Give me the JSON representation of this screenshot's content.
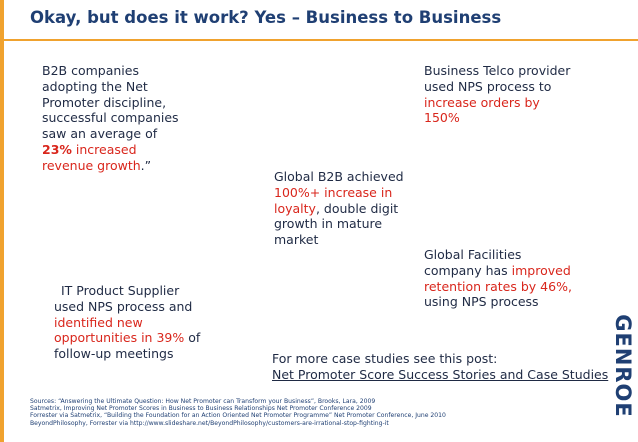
{
  "slide": {
    "title": "Okay, but does it work? Yes – Business to Business",
    "b2b": {
      "line1": "B2B companies",
      "line2": "adopting the Net",
      "line3": "Promoter discipline,",
      "line4": "successful companies",
      "line5": "saw an average of",
      "highlight_pct": "23%",
      "highlight_rest": " increased",
      "highlight_line2": "revenue growth",
      "end": ".”"
    },
    "telco": {
      "line1": "Business Telco provider",
      "line2": "used NPS process to",
      "line3": "increase orders by",
      "line4": "150%"
    },
    "global_b2b": {
      "line1": "Global B2B  achieved",
      "line2": "100%+ increase in",
      "line3_red": "loyalty",
      "line3_rest": ", double digit",
      "line4": "growth in mature",
      "line5": "market"
    },
    "facilities": {
      "line1": "Global Facilities",
      "line2_pre": "company has ",
      "line2_red": "improved",
      "line3": "retention rates by 46%,",
      "line4": "using NPS process"
    },
    "itps": {
      "line1": "IT Product Supplier",
      "line2": "used NPS process and",
      "line3": "identified new",
      "line4_red": "opportunities in 39%",
      "line4_rest": " of",
      "line5": "follow-up meetings"
    },
    "more": {
      "line1": "For more case studies see this post:",
      "link": "Net Promoter Score Success Stories and Case Studies"
    },
    "sources": [
      "Sources: “Answering the Ultimate Question: How Net Promoter can Transform your Business”, Brooks, Lara, 2009",
      "Satmetrix, Improving Net Promoter Scores in Business to Business Relationships Net Promoter Conference 2009",
      "Forrester via Satmetrix, “Building the Foundation for an Action Oriented Net Promoter Programme” Net Promoter Conference, June 2010",
      "BeyondPhilosophy, Forrester via http://www.slideshare.net/BeyondPhilosophy/customers-are-irrational-stop-fighting-it"
    ],
    "logo": "GENROE"
  },
  "colors": {
    "accent": "#f0a22e",
    "title": "#1f3f73",
    "highlight": "#d9261c",
    "text": "#1f2a44"
  }
}
